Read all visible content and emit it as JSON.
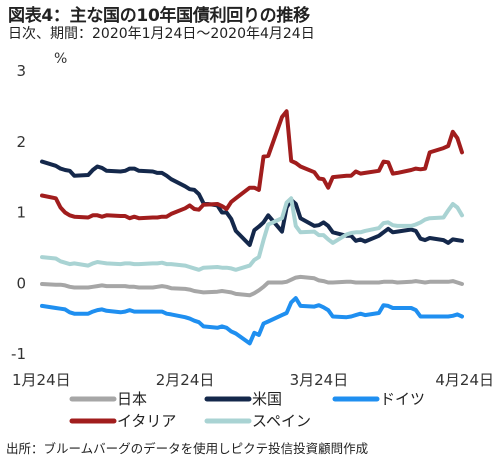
{
  "title": "図表4：主な国の10年国債利回りの推移",
  "subtitle": "日次、期間：2020年1月24日～2020年4月24日",
  "source": "出所：ブルームバーグのデータを使用しピクテ投信投資顧問作成",
  "chart_data": {
    "type": "line",
    "ylabel": "%",
    "ylim": [
      -1,
      3
    ],
    "yticks": [
      "3",
      "2",
      "1",
      "0",
      "-1"
    ],
    "ytick_values": [
      3,
      2,
      1,
      0,
      -1
    ],
    "xticks": [
      "1月24日",
      "2月24日",
      "3月24日",
      "4月24日"
    ],
    "xtick_values": [
      "2020-01-24",
      "2020-02-24",
      "2020-03-24",
      "2020-04-24"
    ],
    "x": [
      "2020-01-24",
      "2020-01-27",
      "2020-01-28",
      "2020-01-29",
      "2020-01-30",
      "2020-01-31",
      "2020-02-03",
      "2020-02-04",
      "2020-02-05",
      "2020-02-06",
      "2020-02-07",
      "2020-02-10",
      "2020-02-11",
      "2020-02-12",
      "2020-02-13",
      "2020-02-14",
      "2020-02-17",
      "2020-02-18",
      "2020-02-19",
      "2020-02-20",
      "2020-02-21",
      "2020-02-24",
      "2020-02-25",
      "2020-02-26",
      "2020-02-27",
      "2020-02-28",
      "2020-03-02",
      "2020-03-03",
      "2020-03-04",
      "2020-03-05",
      "2020-03-06",
      "2020-03-09",
      "2020-03-10",
      "2020-03-11",
      "2020-03-12",
      "2020-03-13",
      "2020-03-16",
      "2020-03-17",
      "2020-03-18",
      "2020-03-19",
      "2020-03-20",
      "2020-03-23",
      "2020-03-24",
      "2020-03-25",
      "2020-03-26",
      "2020-03-27",
      "2020-03-30",
      "2020-03-31",
      "2020-04-01",
      "2020-04-02",
      "2020-04-03",
      "2020-04-06",
      "2020-04-07",
      "2020-04-08",
      "2020-04-09",
      "2020-04-10",
      "2020-04-13",
      "2020-04-14",
      "2020-04-15",
      "2020-04-16",
      "2020-04-17",
      "2020-04-20",
      "2020-04-21",
      "2020-04-22",
      "2020-04-23",
      "2020-04-24"
    ],
    "series": [
      {
        "name": "日本",
        "color": "#a6a6a6",
        "values": [
          -0.01,
          -0.02,
          -0.02,
          -0.03,
          -0.05,
          -0.06,
          -0.06,
          -0.05,
          -0.04,
          -0.03,
          -0.04,
          -0.04,
          -0.04,
          -0.05,
          -0.05,
          -0.06,
          -0.06,
          -0.05,
          -0.04,
          -0.05,
          -0.07,
          -0.08,
          -0.09,
          -0.11,
          -0.12,
          -0.13,
          -0.12,
          -0.11,
          -0.12,
          -0.13,
          -0.15,
          -0.17,
          -0.14,
          -0.1,
          -0.05,
          0.01,
          0.01,
          0.02,
          0.05,
          0.08,
          0.09,
          0.07,
          0.04,
          0.03,
          0.01,
          0.01,
          0.02,
          0.02,
          0.01,
          0.01,
          0.01,
          0.01,
          0.02,
          0.02,
          0.02,
          0.01,
          0.02,
          0.03,
          0.02,
          0.01,
          0.02,
          0.02,
          0.02,
          0.03,
          0.01,
          -0.01
        ]
      },
      {
        "name": "米国",
        "color": "#14284b",
        "values": [
          1.72,
          1.66,
          1.62,
          1.6,
          1.59,
          1.52,
          1.53,
          1.6,
          1.65,
          1.63,
          1.59,
          1.58,
          1.59,
          1.62,
          1.62,
          1.59,
          1.58,
          1.56,
          1.56,
          1.52,
          1.47,
          1.37,
          1.33,
          1.32,
          1.26,
          1.13,
          1.1,
          1.0,
          1.0,
          0.91,
          0.74,
          0.54,
          0.75,
          0.8,
          0.86,
          0.96,
          0.73,
          1.07,
          1.18,
          1.12,
          0.92,
          0.81,
          0.82,
          0.86,
          0.81,
          0.72,
          0.67,
          0.67,
          0.6,
          0.62,
          0.59,
          0.67,
          0.72,
          0.77,
          0.72,
          0.73,
          0.76,
          0.74,
          0.63,
          0.61,
          0.64,
          0.61,
          0.57,
          0.62,
          0.61,
          0.6
        ]
      },
      {
        "name": "ドイツ",
        "color": "#1f8ff0",
        "values": [
          -0.32,
          -0.35,
          -0.36,
          -0.37,
          -0.41,
          -0.43,
          -0.43,
          -0.4,
          -0.38,
          -0.37,
          -0.39,
          -0.41,
          -0.4,
          -0.38,
          -0.4,
          -0.4,
          -0.4,
          -0.4,
          -0.4,
          -0.43,
          -0.44,
          -0.48,
          -0.5,
          -0.53,
          -0.55,
          -0.61,
          -0.63,
          -0.61,
          -0.63,
          -0.68,
          -0.71,
          -0.85,
          -0.7,
          -0.73,
          -0.57,
          -0.54,
          -0.45,
          -0.42,
          -0.27,
          -0.21,
          -0.32,
          -0.33,
          -0.31,
          -0.34,
          -0.38,
          -0.47,
          -0.48,
          -0.47,
          -0.45,
          -0.43,
          -0.45,
          -0.42,
          -0.31,
          -0.32,
          -0.35,
          -0.35,
          -0.35,
          -0.38,
          -0.47,
          -0.47,
          -0.47,
          -0.47,
          -0.47,
          -0.46,
          -0.44,
          -0.47
        ]
      },
      {
        "name": "イタリア",
        "color": "#a11d1d",
        "values": [
          1.24,
          1.2,
          1.07,
          1.0,
          0.96,
          0.94,
          0.93,
          0.96,
          0.96,
          0.94,
          0.96,
          0.95,
          0.95,
          0.92,
          0.94,
          0.92,
          0.93,
          0.93,
          0.94,
          0.94,
          0.98,
          1.06,
          1.1,
          1.05,
          1.04,
          1.11,
          1.12,
          1.09,
          1.05,
          1.15,
          1.2,
          1.35,
          1.35,
          1.32,
          1.79,
          1.8,
          2.35,
          2.43,
          1.73,
          1.7,
          1.65,
          1.57,
          1.48,
          1.47,
          1.35,
          1.5,
          1.52,
          1.52,
          1.58,
          1.55,
          1.56,
          1.59,
          1.72,
          1.71,
          1.55,
          1.56,
          1.6,
          1.62,
          1.61,
          1.62,
          1.85,
          1.91,
          1.94,
          2.14,
          2.05,
          1.85
        ]
      },
      {
        "name": "スペイン",
        "color": "#a9d3d3",
        "values": [
          0.37,
          0.35,
          0.31,
          0.29,
          0.27,
          0.28,
          0.25,
          0.28,
          0.3,
          0.29,
          0.28,
          0.27,
          0.28,
          0.28,
          0.27,
          0.27,
          0.28,
          0.28,
          0.29,
          0.27,
          0.27,
          0.25,
          0.23,
          0.21,
          0.19,
          0.22,
          0.23,
          0.22,
          0.22,
          0.21,
          0.19,
          0.25,
          0.33,
          0.37,
          0.61,
          0.83,
          0.92,
          1.14,
          1.2,
          0.81,
          0.72,
          0.73,
          0.68,
          0.68,
          0.62,
          0.57,
          0.69,
          0.71,
          0.72,
          0.72,
          0.74,
          0.78,
          0.85,
          0.86,
          0.82,
          0.81,
          0.81,
          0.83,
          0.86,
          0.9,
          0.92,
          0.93,
          1.03,
          1.12,
          1.07,
          0.96
        ]
      }
    ],
    "grid": false,
    "legend_position": "bottom"
  }
}
